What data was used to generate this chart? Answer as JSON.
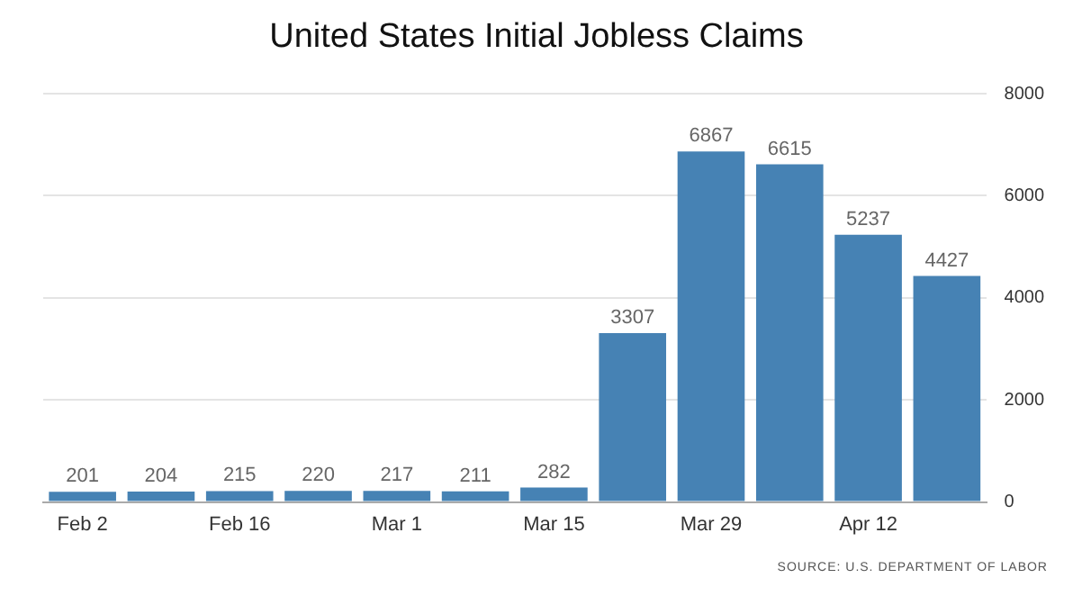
{
  "chart_data": {
    "type": "bar",
    "title": "United States Initial Jobless Claims",
    "categories": [
      "Feb 2",
      null,
      "Feb 16",
      null,
      "Mar 1",
      null,
      "Mar 15",
      null,
      "Mar 29",
      null,
      "Apr 12",
      null
    ],
    "values": [
      201,
      204,
      215,
      220,
      217,
      211,
      282,
      3307,
      6867,
      6615,
      5237,
      4427
    ],
    "color": "#4682b4",
    "ylim": [
      0,
      8000
    ],
    "yticks": [
      0,
      2000,
      4000,
      6000,
      8000
    ],
    "grid": "y",
    "data_labels": true,
    "annotations": [
      "SOURCE: U.S. DEPARTMENT OF LABOR"
    ]
  }
}
